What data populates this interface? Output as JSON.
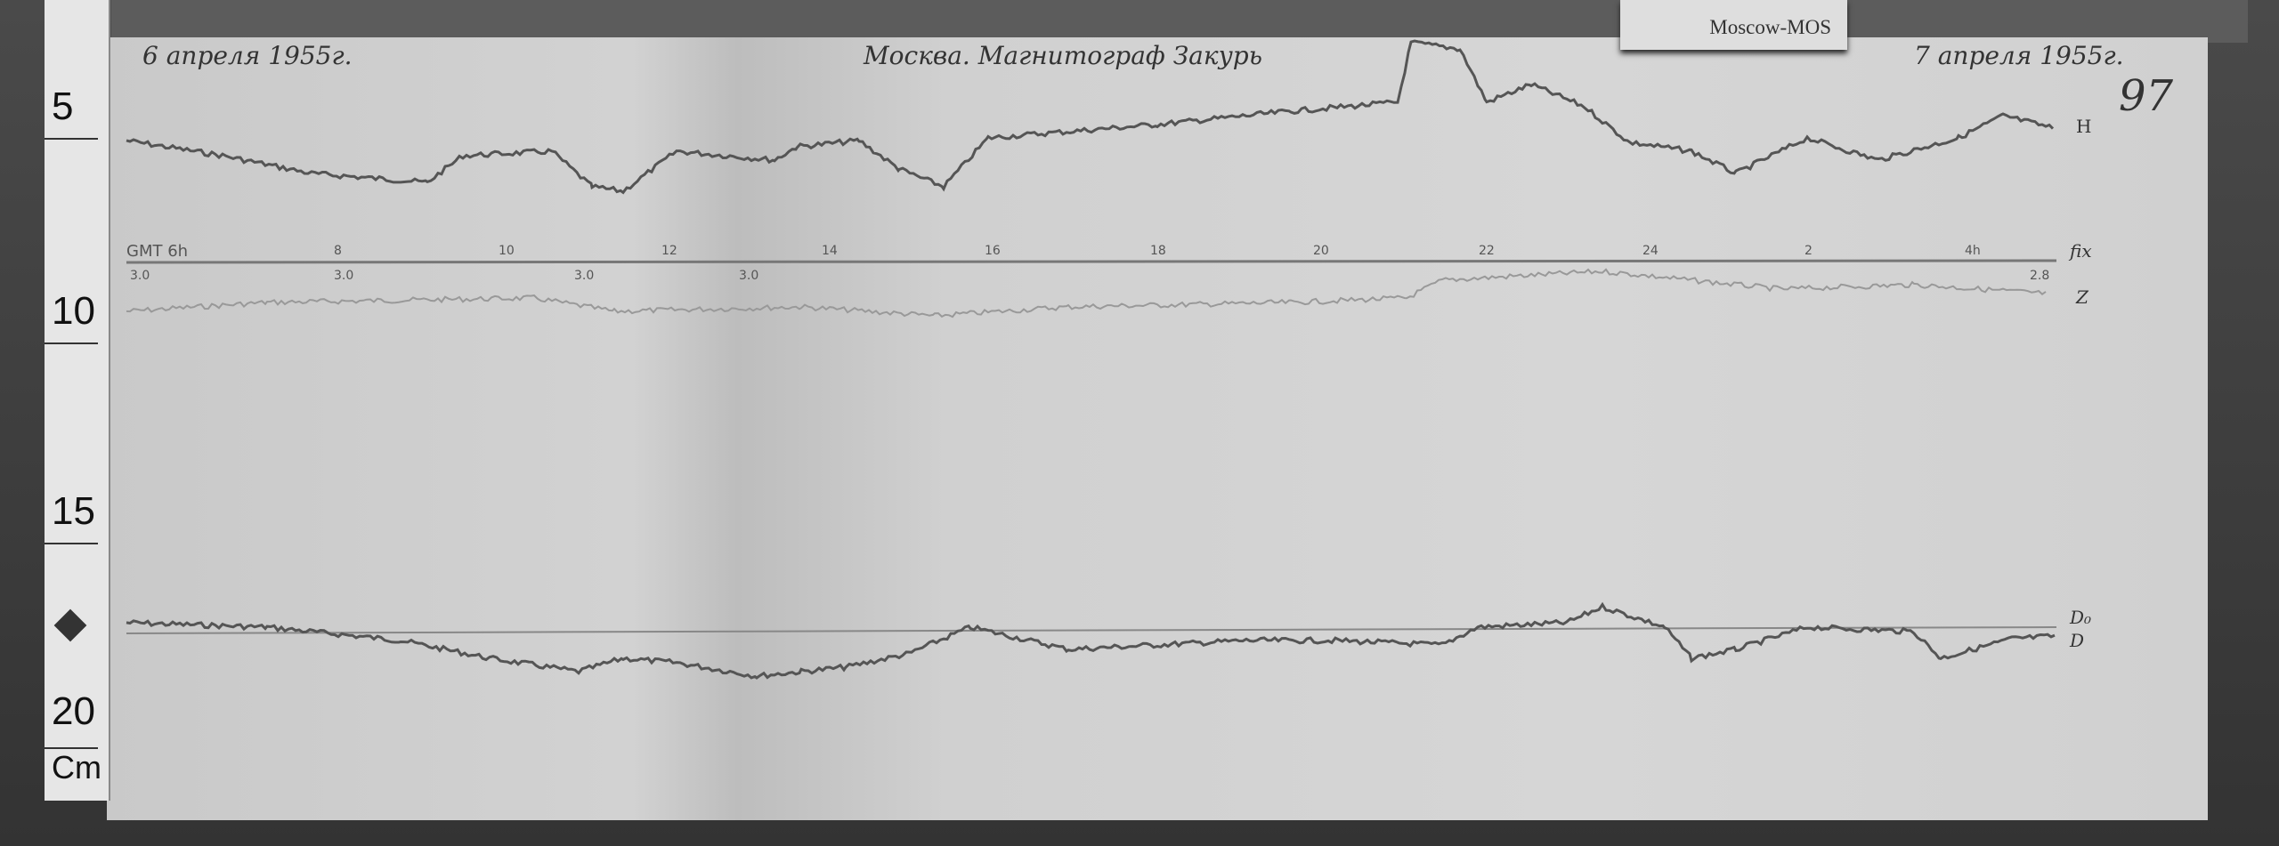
{
  "tag_label": "Moscow-MOS",
  "header": {
    "date_left": "6 апреля 1955г.",
    "title": "Москва. Магнитограф Закурь",
    "date_right": "7 апреля 1955г.",
    "sheet_number": "97"
  },
  "ruler": {
    "marks": [
      "5",
      "10",
      "15",
      "20"
    ],
    "unit": "Cm"
  },
  "time_axis": {
    "labels": [
      "GMT 6h",
      "8",
      "10",
      "12",
      "14",
      "16",
      "18",
      "20",
      "22",
      "24",
      "2",
      "4h"
    ],
    "scale_values": [
      "3.0",
      "3.0",
      "3.0",
      "3.0",
      "2.8"
    ],
    "end_label": "fix"
  },
  "traces": {
    "h": "H",
    "z": "Z",
    "d0": "D₀",
    "d": "D"
  }
}
